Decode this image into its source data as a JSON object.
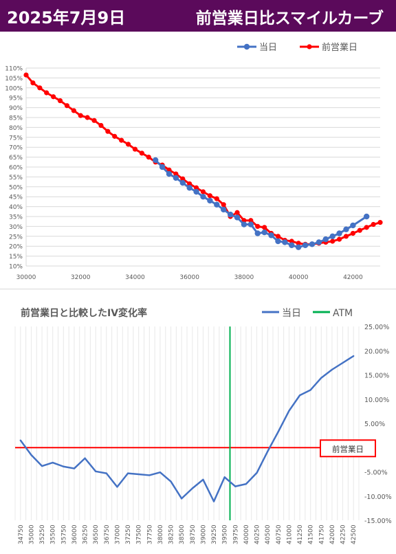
{
  "header": {
    "date": "2025年7月9日",
    "title": "前営業日比スマイルカーブ"
  },
  "colors": {
    "header_bg": "#5b0a5b",
    "today": "#4472c4",
    "prev": "#ff0000",
    "atm": "#00b050",
    "grid": "#d9d9d9"
  },
  "chart_data": [
    {
      "type": "line",
      "title": "",
      "legend_position": "top-right",
      "grid": true,
      "xlim": [
        30000,
        43000
      ],
      "ylim": [
        10,
        110
      ],
      "x_ticks": [
        "30000",
        "32000",
        "34000",
        "36000",
        "38000",
        "40000",
        "42000"
      ],
      "y_ticks": [
        "10%",
        "15%",
        "20%",
        "25%",
        "30%",
        "35%",
        "40%",
        "45%",
        "50%",
        "55%",
        "60%",
        "65%",
        "70%",
        "75%",
        "80%",
        "85%",
        "90%",
        "95%",
        "100%",
        "105%",
        "110%"
      ],
      "series": [
        {
          "name": "当日",
          "x": [
            34750,
            35000,
            35250,
            35500,
            35750,
            36000,
            36250,
            36500,
            36750,
            37000,
            37250,
            37500,
            37750,
            38000,
            38250,
            38500,
            38750,
            39000,
            39250,
            39500,
            39750,
            40000,
            40250,
            40500,
            40750,
            41000,
            41250,
            41500,
            41750,
            42000,
            42500
          ],
          "y": [
            63.5,
            60,
            56.5,
            54.5,
            52,
            49.5,
            47.5,
            45,
            43,
            41,
            38.5,
            36,
            34.5,
            31,
            31,
            26.5,
            27,
            25.5,
            22.5,
            22,
            20.5,
            19.5,
            20.5,
            21,
            22,
            23.5,
            25,
            26.5,
            28.5,
            30.5,
            35
          ]
        },
        {
          "name": "前営業日",
          "x": [
            30000,
            30250,
            30500,
            30750,
            31000,
            31250,
            31500,
            31750,
            32000,
            32250,
            32500,
            32750,
            33000,
            33250,
            33500,
            33750,
            34000,
            34250,
            34500,
            34750,
            35000,
            35250,
            35500,
            35750,
            36000,
            36250,
            36500,
            36750,
            37000,
            37250,
            37500,
            37750,
            38000,
            38250,
            38500,
            38750,
            39000,
            39250,
            39500,
            39750,
            40000,
            40250,
            40500,
            40750,
            41000,
            41250,
            41500,
            41750,
            42000,
            42250,
            42500,
            42750,
            43000
          ],
          "y": [
            106.5,
            102.5,
            100,
            97.5,
            95.5,
            93.5,
            91,
            88.5,
            86,
            85,
            83.5,
            81,
            78,
            75.5,
            73.5,
            71.5,
            69,
            67,
            65,
            62.5,
            61,
            58.5,
            56.5,
            54,
            51.5,
            49.5,
            47.5,
            45.5,
            44,
            41,
            35,
            37,
            33,
            33,
            30,
            29.5,
            26.5,
            25,
            23,
            22.5,
            21.5,
            21,
            21,
            21.5,
            22,
            22.5,
            23.5,
            25,
            26.5,
            28,
            29.5,
            31,
            32
          ]
        }
      ]
    },
    {
      "type": "line",
      "title": "前営業日と比較したIV変化率",
      "legend_position": "top-right",
      "grid": true,
      "ylim": [
        -15,
        25
      ],
      "y_ticks": [
        "25.00%",
        "20.00%",
        "15.00%",
        "10.00%",
        "5.00%",
        "0%",
        "-5.00%",
        "-10.00%",
        "-15.00%"
      ],
      "categories": [
        "34750",
        "35000",
        "35250",
        "35500",
        "35750",
        "36000",
        "36250",
        "36500",
        "36750",
        "37000",
        "37250",
        "37500",
        "37750",
        "38000",
        "38250",
        "38500",
        "38750",
        "39000",
        "39250",
        "39500",
        "39750",
        "40000",
        "40250",
        "40500",
        "40750",
        "41000",
        "41250",
        "41500",
        "41750",
        "42000",
        "42250",
        "42500"
      ],
      "series": [
        {
          "name": "当日",
          "values": [
            1.5,
            -1.5,
            -3.8,
            -3.1,
            -3.9,
            -4.3,
            -2.2,
            -4.9,
            -5.3,
            -8.1,
            -5.3,
            -5.5,
            -5.7,
            -5.1,
            -7.0,
            -10.5,
            -8.4,
            -6.6,
            -11.1,
            -6.1,
            -8.0,
            -7.5,
            -5.2,
            -0.8,
            3.3,
            7.6,
            10.8,
            11.9,
            14.4,
            16.1,
            17.5,
            18.9
          ]
        },
        {
          "name": "ATM",
          "position": 39625
        }
      ],
      "annotation": "前営業日"
    }
  ]
}
